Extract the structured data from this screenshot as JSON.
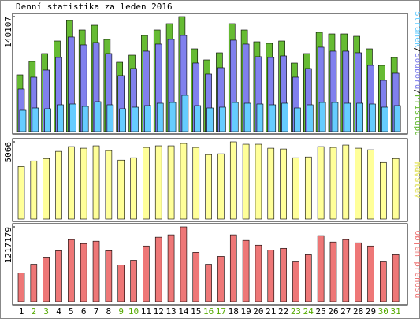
{
  "title": "Denní statistika za leden 2016",
  "categories": [
    "1",
    "2",
    "3",
    "4",
    "5",
    "6",
    "7",
    "8",
    "9",
    "10",
    "11",
    "12",
    "13",
    "14",
    "15",
    "16",
    "17",
    "18",
    "19",
    "20",
    "21",
    "22",
    "23",
    "24",
    "25",
    "26",
    "27",
    "28",
    "29",
    "30",
    "31"
  ],
  "category_colors": [
    "#000000",
    "#55aa00",
    "#55aa00",
    "#000000",
    "#000000",
    "#000000",
    "#000000",
    "#000000",
    "#55aa00",
    "#55aa00",
    "#000000",
    "#000000",
    "#000000",
    "#000000",
    "#000000",
    "#55aa00",
    "#55aa00",
    "#000000",
    "#000000",
    "#000000",
    "#000000",
    "#000000",
    "#55aa00",
    "#55aa00",
    "#000000",
    "#000000",
    "#000000",
    "#000000",
    "#000000",
    "#55aa00",
    "#55aa00"
  ],
  "legend_separator": "/",
  "chart_data": [
    {
      "type": "bar",
      "ylim": [
        0,
        140107
      ],
      "yticks": [
        140107
      ],
      "series": [
        {
          "name": "Přístupů",
          "color": "#66bb33",
          "values": [
            69091,
            85406,
            95002,
            110357,
            135306,
            123792,
            129550,
            112276,
            84447,
            93083,
            117074,
            123792,
            131468,
            140107,
            100760,
            87325,
            95963,
            131468,
            123792,
            109396,
            107477,
            110357,
            83487,
            95002,
            120913,
            118994,
            118994,
            116115,
            100760,
            80608,
            90205
          ]
        },
        {
          "name": "Souborů",
          "color": "#8080ee",
          "values": [
            51840,
            66240,
            74880,
            90240,
            115200,
            105600,
            108480,
            95040,
            68160,
            76800,
            97920,
            106560,
            112320,
            117120,
            83520,
            70080,
            77760,
            111360,
            106560,
            91200,
            90240,
            92160,
            66240,
            76800,
            102720,
            97920,
            97920,
            96000,
            80640,
            62400,
            71040
          ]
        },
        {
          "name": "Stránek",
          "color": "#66ccff",
          "values": [
            25920,
            28800,
            27840,
            32640,
            33600,
            30720,
            36480,
            32640,
            27840,
            29760,
            31680,
            34560,
            35520,
            44160,
            31680,
            28800,
            29760,
            35520,
            34560,
            33600,
            32640,
            34560,
            28800,
            32640,
            35520,
            35520,
            34560,
            34560,
            33600,
            29760,
            31680
          ]
        }
      ]
    },
    {
      "type": "bar",
      "ylim": [
        0,
        5066
      ],
      "yticks": [
        5066
      ],
      "series": [
        {
          "name": "Návštěv",
          "color": "#ffff99",
          "values": [
            3447,
            3812,
            3969,
            4439,
            4752,
            4648,
            4805,
            4491,
            3865,
            4021,
            4700,
            4805,
            4805,
            4961,
            4700,
            4230,
            4282,
            5066,
            4909,
            4909,
            4648,
            4596,
            4021,
            4073,
            4752,
            4700,
            4857,
            4648,
            4544,
            3708,
            3969
          ]
        }
      ]
    },
    {
      "type": "bar",
      "ylim": [
        0,
        1217179
      ],
      "yticks": [
        1217179
      ],
      "series": [
        {
          "name": "Objem přenosu",
          "color": "#ee7777",
          "values": [
            466164,
            608603,
            725144,
            828736,
            1010022,
            945277,
            984124,
            828736,
            595654,
            673348,
            906430,
            1048869,
            1087716,
            1217179,
            802838,
            608603,
            738093,
            1087716,
            997073,
            919379,
            841685,
            867583,
            660399,
            763991,
            1074767,
            971175,
            1010022,
            958226,
            906430,
            660399,
            763991
          ]
        }
      ]
    }
  ]
}
